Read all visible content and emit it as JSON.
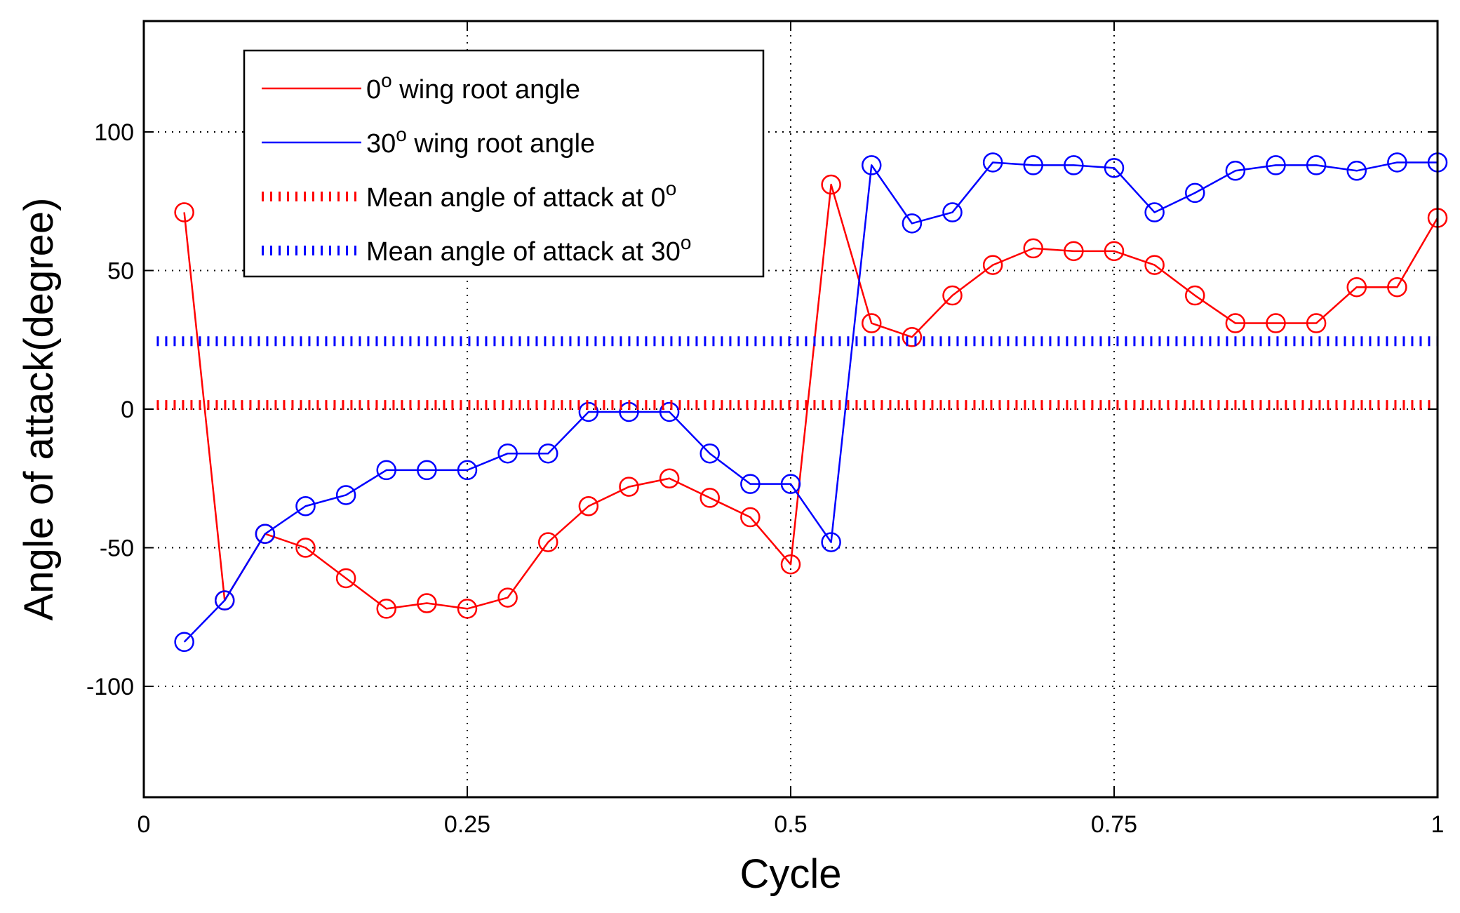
{
  "chart_data": {
    "type": "line",
    "xlabel": "Cycle",
    "ylabel": "Angle of attack(degree)",
    "xlim": [
      0,
      1
    ],
    "ylim": [
      -140,
      140
    ],
    "xticks": [
      0,
      0.25,
      0.5,
      0.75,
      1
    ],
    "xtick_labels": [
      "0",
      "0.25",
      "0.5",
      "0.75",
      "1"
    ],
    "yticks": [
      -100,
      -50,
      0,
      50,
      100
    ],
    "ytick_labels": [
      "-100",
      "-50",
      "0",
      "50",
      "100"
    ],
    "grid": true,
    "legend_position": "top-left",
    "series": [
      {
        "name": "0o wing root angle",
        "legend_base": "0",
        "legend_sup": "o",
        "legend_rest": " wing root angle",
        "color": "#ff0000",
        "style": "solid",
        "marker": "circle",
        "x": [
          0.03125,
          0.0625,
          0.09375,
          0.125,
          0.15625,
          0.1875,
          0.21875,
          0.25,
          0.28125,
          0.3125,
          0.34375,
          0.375,
          0.40625,
          0.4375,
          0.46875,
          0.5,
          0.53125,
          0.5625,
          0.59375,
          0.625,
          0.65625,
          0.6875,
          0.71875,
          0.75,
          0.78125,
          0.8125,
          0.84375,
          0.875,
          0.90625,
          0.9375,
          0.96875,
          1.0
        ],
        "y": [
          71,
          -69,
          -45,
          -50,
          -61,
          -72,
          -70,
          -72,
          -68,
          -48,
          -35,
          -28,
          -25,
          -32,
          -39,
          -56,
          81,
          31,
          26,
          41,
          52,
          58,
          57,
          57,
          52,
          41,
          31,
          31,
          31,
          44,
          44,
          69
        ]
      },
      {
        "name": "30o wing root angle",
        "legend_base": "30",
        "legend_sup": "o",
        "legend_rest": " wing root angle",
        "color": "#0000ff",
        "style": "solid",
        "marker": "circle",
        "x": [
          0.03125,
          0.0625,
          0.09375,
          0.125,
          0.15625,
          0.1875,
          0.21875,
          0.25,
          0.28125,
          0.3125,
          0.34375,
          0.375,
          0.40625,
          0.4375,
          0.46875,
          0.5,
          0.53125,
          0.5625,
          0.59375,
          0.625,
          0.65625,
          0.6875,
          0.71875,
          0.75,
          0.78125,
          0.8125,
          0.84375,
          0.875,
          0.90625,
          0.9375,
          0.96875,
          1.0
        ],
        "y": [
          -84,
          -69,
          -45,
          -35,
          -31,
          -22,
          -22,
          -22,
          -16,
          -16,
          -1,
          -1,
          -1,
          -16,
          -27,
          -27,
          -48,
          88,
          67,
          71,
          89,
          88,
          88,
          87,
          71,
          78,
          86,
          88,
          88,
          86,
          89,
          89
        ]
      },
      {
        "name": "Mean angle of attack at 0o",
        "legend_base": "Mean angle of attack at 0",
        "legend_sup": "o",
        "legend_rest": "",
        "color": "#ff0000",
        "style": "dotted",
        "marker": "none",
        "x": [
          0.01,
          1.0
        ],
        "y": [
          1.5,
          1.5
        ]
      },
      {
        "name": "Mean angle of attack at 30o",
        "legend_base": "Mean angle of attack at 30",
        "legend_sup": "o",
        "legend_rest": "",
        "color": "#0000ff",
        "style": "dotted",
        "marker": "none",
        "x": [
          0.01,
          1.0
        ],
        "y": [
          24.5,
          24.5
        ]
      }
    ]
  }
}
